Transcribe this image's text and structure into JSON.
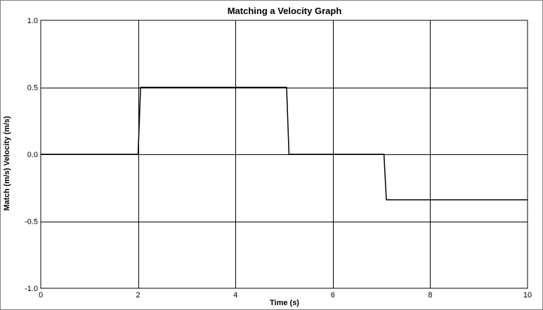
{
  "chart_data": {
    "type": "line",
    "title": "Matching a Velocity Graph",
    "xlabel": "Time (s)",
    "ylabel": "Match (m/s) Velocity (m/s)",
    "xlim": [
      0,
      10
    ],
    "ylim": [
      -1.0,
      1.0
    ],
    "xticks": [
      "0",
      "2",
      "4",
      "6",
      "8",
      "10"
    ],
    "yticks": [
      "1.0",
      "0.5",
      "0.0",
      "-0.5",
      "-1.0"
    ],
    "xtick_values": [
      0,
      2,
      4,
      6,
      8,
      10
    ],
    "ytick_values": [
      1.0,
      0.5,
      0.0,
      -0.5,
      -1.0
    ],
    "grid": true,
    "series": [
      {
        "x": [
          0,
          2.0,
          2.05,
          5.05,
          5.1,
          7.05,
          7.1,
          10
        ],
        "y": [
          0,
          0,
          0.5,
          0.5,
          0,
          0,
          -0.34,
          -0.34
        ],
        "color": "#000000"
      }
    ]
  }
}
